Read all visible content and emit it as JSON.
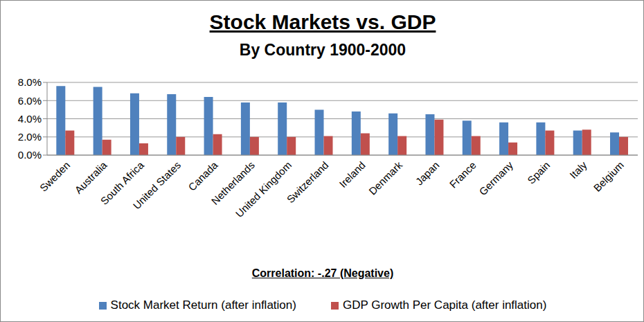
{
  "chart_data": {
    "type": "bar",
    "title": "Stock Markets vs. GDP",
    "subtitle": "By Country 1900-2000",
    "annotation": "Correlation: -.27 (Negative)",
    "categories": [
      "Sweden",
      "Australia",
      "South Africa",
      "United States",
      "Canada",
      "Netherlands",
      "United Kingdom",
      "Switzerland",
      "Ireland",
      "Denmark",
      "Japan",
      "France",
      "Germany",
      "Spain",
      "Italy",
      "Belgium"
    ],
    "series": [
      {
        "name": "Stock Market Return (after inflation)",
        "color": "#4f81bd",
        "values": [
          7.6,
          7.5,
          6.8,
          6.7,
          6.4,
          5.8,
          5.8,
          5.0,
          4.8,
          4.6,
          4.5,
          3.8,
          3.6,
          3.6,
          2.7,
          2.5
        ]
      },
      {
        "name": "GDP Growth Per Capita (after inflation)",
        "color": "#c0504d",
        "values": [
          2.7,
          1.7,
          1.3,
          2.0,
          2.3,
          2.0,
          2.0,
          2.1,
          2.4,
          2.1,
          3.9,
          2.1,
          1.4,
          2.7,
          2.8,
          2.0
        ]
      }
    ],
    "ylim": [
      0,
      8
    ],
    "yticks": [
      {
        "value": 0,
        "label": "0.0%"
      },
      {
        "value": 2,
        "label": "2.0%"
      },
      {
        "value": 4,
        "label": "4.0%"
      },
      {
        "value": 6,
        "label": "6.0%"
      },
      {
        "value": 8,
        "label": "8.0%"
      }
    ],
    "grid": true,
    "legend": "bottom"
  }
}
